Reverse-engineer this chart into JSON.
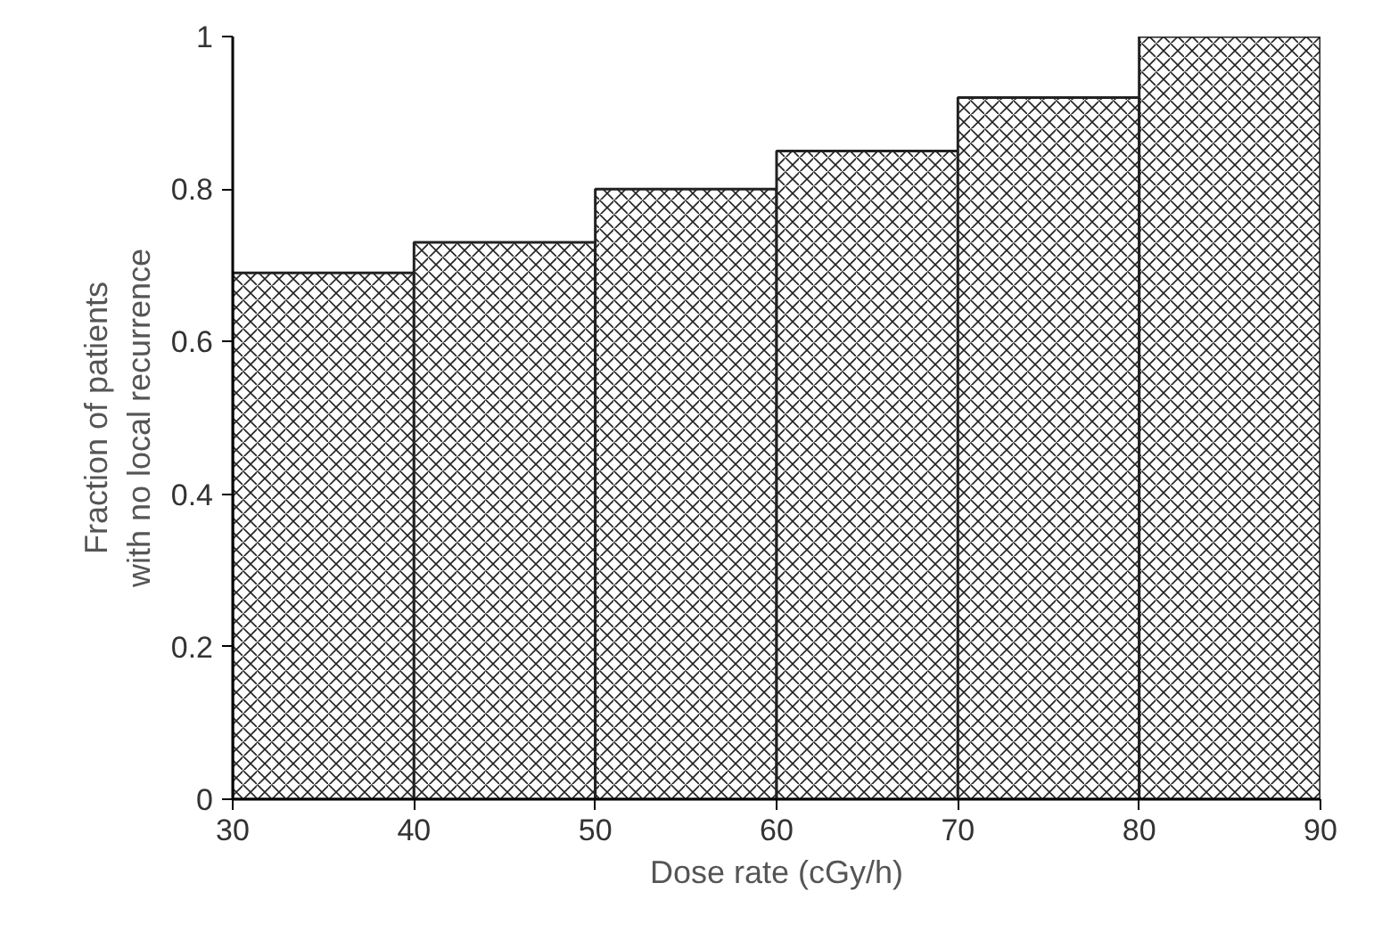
{
  "chart_data": {
    "type": "histogram",
    "xlabel": "Dose rate (cGy/h)",
    "ylabel": "Fraction of patients\nwith no local recurrence",
    "bins": [
      30,
      40,
      50,
      60,
      70,
      80,
      90
    ],
    "values": [
      0.69,
      0.73,
      0.8,
      0.85,
      0.92,
      1.0
    ],
    "color": "#222222",
    "xlim": [
      30,
      90
    ],
    "ylim": [
      0,
      1
    ],
    "xticks": [
      30,
      40,
      50,
      60,
      70,
      80,
      90
    ],
    "yticks": [
      0,
      0.2,
      0.4,
      0.6,
      0.8,
      1
    ],
    "grid": false
  }
}
